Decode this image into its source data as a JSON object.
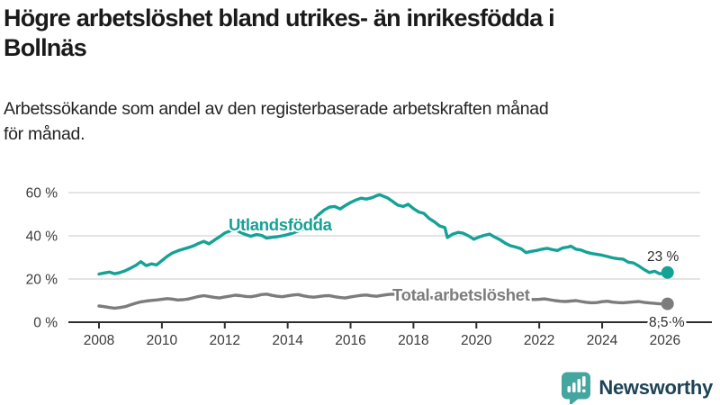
{
  "title": {
    "line1": "Högre arbetslöshet bland utrikes- än inrikesfödda i",
    "line2": "Bollnäs"
  },
  "subtitle": {
    "line1": "Arbetssökande som andel av den registerbaserade arbetskraften månad",
    "line2": "för månad."
  },
  "logo": {
    "text": "Newsworthy"
  },
  "colors": {
    "teal": "#15a296",
    "gray": "#7c7c7c",
    "grid": "#dcdcdc",
    "axis": "#2e2e2e",
    "tick_text": "#3a3a3a",
    "value_text": "#2e2e2e",
    "logo_navy": "#1c4356",
    "logo_teal": "#44a69e"
  },
  "chart_data": {
    "type": "line",
    "title": "Högre arbetslöshet bland utrikes- än inrikesfödda i Bollnäs",
    "subtitle": "Arbetssökande som andel av den registerbaserade arbetskraften månad för månad.",
    "xlabel": "",
    "ylabel": "",
    "y_unit": "%",
    "grid": "horizontal",
    "legend_position": "inline-labels",
    "x_axis": {
      "range": [
        2007.8,
        2026.5
      ],
      "ticks": [
        2008,
        2010,
        2012,
        2014,
        2016,
        2018,
        2020,
        2022,
        2024,
        2026
      ],
      "tick_labels": [
        "2008",
        "2010",
        "2012",
        "2014",
        "2016",
        "2018",
        "2020",
        "2022",
        "2024",
        "2026"
      ]
    },
    "y_axis": {
      "range": [
        0,
        62
      ],
      "ticks": [
        0,
        20,
        40,
        60
      ],
      "tick_labels": [
        "0 %",
        "20 %",
        "40 %",
        "60 %"
      ]
    },
    "series": [
      {
        "name": "Utlandsfödda",
        "end_label": "23 %",
        "end_value": 23,
        "points": [
          [
            2008.0,
            22.3
          ],
          [
            2008.17,
            22.8
          ],
          [
            2008.33,
            23.2
          ],
          [
            2008.5,
            22.4
          ],
          [
            2008.67,
            23.0
          ],
          [
            2008.83,
            23.8
          ],
          [
            2009.0,
            25.0
          ],
          [
            2009.17,
            26.3
          ],
          [
            2009.33,
            28.0
          ],
          [
            2009.5,
            26.2
          ],
          [
            2009.67,
            27.0
          ],
          [
            2009.83,
            26.5
          ],
          [
            2010.0,
            28.5
          ],
          [
            2010.17,
            30.5
          ],
          [
            2010.33,
            32.0
          ],
          [
            2010.5,
            33.0
          ],
          [
            2010.67,
            33.8
          ],
          [
            2010.83,
            34.5
          ],
          [
            2011.0,
            35.3
          ],
          [
            2011.17,
            36.5
          ],
          [
            2011.33,
            37.4
          ],
          [
            2011.5,
            36.3
          ],
          [
            2011.67,
            38.0
          ],
          [
            2011.83,
            39.5
          ],
          [
            2012.0,
            41.3
          ],
          [
            2012.17,
            42.3
          ],
          [
            2012.33,
            42.9
          ],
          [
            2012.5,
            41.6
          ],
          [
            2012.67,
            40.5
          ],
          [
            2012.83,
            39.8
          ],
          [
            2013.0,
            40.6
          ],
          [
            2013.17,
            40.2
          ],
          [
            2013.33,
            38.9
          ],
          [
            2013.5,
            39.3
          ],
          [
            2013.67,
            39.6
          ],
          [
            2013.83,
            40.0
          ],
          [
            2014.0,
            40.6
          ],
          [
            2014.17,
            41.3
          ],
          [
            2014.33,
            42.2
          ],
          [
            2014.5,
            43.0
          ],
          [
            2014.67,
            45.0
          ],
          [
            2014.83,
            47.5
          ],
          [
            2015.0,
            50.0
          ],
          [
            2015.17,
            52.0
          ],
          [
            2015.33,
            53.3
          ],
          [
            2015.5,
            53.6
          ],
          [
            2015.67,
            52.4
          ],
          [
            2015.83,
            54.0
          ],
          [
            2016.0,
            55.4
          ],
          [
            2016.17,
            56.6
          ],
          [
            2016.33,
            57.4
          ],
          [
            2016.5,
            57.0
          ],
          [
            2016.67,
            57.6
          ],
          [
            2016.83,
            58.6
          ],
          [
            2016.92,
            59.0
          ],
          [
            2017.0,
            58.6
          ],
          [
            2017.17,
            57.6
          ],
          [
            2017.33,
            56.0
          ],
          [
            2017.5,
            54.2
          ],
          [
            2017.67,
            53.6
          ],
          [
            2017.83,
            54.6
          ],
          [
            2018.0,
            52.6
          ],
          [
            2018.17,
            51.0
          ],
          [
            2018.33,
            50.4
          ],
          [
            2018.5,
            48.0
          ],
          [
            2018.67,
            46.4
          ],
          [
            2018.83,
            44.6
          ],
          [
            2019.0,
            43.8
          ],
          [
            2019.08,
            39.2
          ],
          [
            2019.25,
            40.8
          ],
          [
            2019.42,
            41.6
          ],
          [
            2019.58,
            41.2
          ],
          [
            2019.75,
            40.0
          ],
          [
            2019.92,
            38.4
          ],
          [
            2020.08,
            39.4
          ],
          [
            2020.25,
            40.2
          ],
          [
            2020.42,
            40.8
          ],
          [
            2020.58,
            39.4
          ],
          [
            2020.75,
            38.2
          ],
          [
            2020.92,
            36.6
          ],
          [
            2021.08,
            35.4
          ],
          [
            2021.25,
            34.8
          ],
          [
            2021.42,
            34.0
          ],
          [
            2021.58,
            32.2
          ],
          [
            2021.75,
            32.8
          ],
          [
            2021.92,
            33.2
          ],
          [
            2022.08,
            33.8
          ],
          [
            2022.25,
            34.2
          ],
          [
            2022.42,
            33.6
          ],
          [
            2022.58,
            33.2
          ],
          [
            2022.75,
            34.4
          ],
          [
            2022.92,
            34.8
          ],
          [
            2023.0,
            35.2
          ],
          [
            2023.17,
            33.8
          ],
          [
            2023.33,
            33.4
          ],
          [
            2023.5,
            32.4
          ],
          [
            2023.67,
            31.8
          ],
          [
            2023.83,
            31.4
          ],
          [
            2024.0,
            31.0
          ],
          [
            2024.17,
            30.4
          ],
          [
            2024.33,
            29.8
          ],
          [
            2024.5,
            29.4
          ],
          [
            2024.67,
            29.2
          ],
          [
            2024.83,
            27.8
          ],
          [
            2025.0,
            27.4
          ],
          [
            2025.17,
            26.0
          ],
          [
            2025.33,
            24.4
          ],
          [
            2025.5,
            23.0
          ],
          [
            2025.67,
            23.6
          ],
          [
            2025.83,
            22.4
          ],
          [
            2026.0,
            22.6
          ],
          [
            2026.08,
            23.0
          ]
        ]
      },
      {
        "name": "Total arbetslöshet",
        "end_label": "8,5 %",
        "end_value": 8.5,
        "points": [
          [
            2008.0,
            7.5
          ],
          [
            2008.17,
            7.2
          ],
          [
            2008.33,
            6.8
          ],
          [
            2008.5,
            6.5
          ],
          [
            2008.67,
            6.8
          ],
          [
            2008.83,
            7.2
          ],
          [
            2009.0,
            8.0
          ],
          [
            2009.17,
            8.8
          ],
          [
            2009.33,
            9.4
          ],
          [
            2009.5,
            9.8
          ],
          [
            2009.67,
            10.1
          ],
          [
            2009.83,
            10.3
          ],
          [
            2010.0,
            10.6
          ],
          [
            2010.17,
            10.9
          ],
          [
            2010.33,
            10.7
          ],
          [
            2010.5,
            10.3
          ],
          [
            2010.67,
            10.4
          ],
          [
            2010.83,
            10.7
          ],
          [
            2011.0,
            11.3
          ],
          [
            2011.17,
            11.9
          ],
          [
            2011.33,
            12.3
          ],
          [
            2011.5,
            11.9
          ],
          [
            2011.67,
            11.5
          ],
          [
            2011.83,
            11.2
          ],
          [
            2012.0,
            11.7
          ],
          [
            2012.17,
            12.1
          ],
          [
            2012.33,
            12.5
          ],
          [
            2012.5,
            12.3
          ],
          [
            2012.67,
            11.9
          ],
          [
            2012.83,
            11.8
          ],
          [
            2013.0,
            12.2
          ],
          [
            2013.17,
            12.8
          ],
          [
            2013.33,
            13.0
          ],
          [
            2013.5,
            12.4
          ],
          [
            2013.67,
            12.0
          ],
          [
            2013.83,
            11.8
          ],
          [
            2014.0,
            12.2
          ],
          [
            2014.17,
            12.6
          ],
          [
            2014.33,
            12.8
          ],
          [
            2014.5,
            12.2
          ],
          [
            2014.67,
            11.8
          ],
          [
            2014.83,
            11.6
          ],
          [
            2015.0,
            11.9
          ],
          [
            2015.17,
            12.2
          ],
          [
            2015.33,
            12.3
          ],
          [
            2015.5,
            11.8
          ],
          [
            2015.67,
            11.4
          ],
          [
            2015.83,
            11.2
          ],
          [
            2016.0,
            11.7
          ],
          [
            2016.17,
            12.1
          ],
          [
            2016.33,
            12.4
          ],
          [
            2016.5,
            12.6
          ],
          [
            2016.67,
            12.2
          ],
          [
            2016.83,
            12.0
          ],
          [
            2017.0,
            12.4
          ],
          [
            2017.17,
            12.8
          ],
          [
            2017.33,
            13.0
          ],
          [
            2017.5,
            12.7
          ],
          [
            2017.67,
            12.3
          ],
          [
            2017.83,
            12.4
          ],
          [
            2018.0,
            12.5
          ],
          [
            2018.17,
            12.2
          ],
          [
            2018.33,
            11.9
          ],
          [
            2018.5,
            11.5
          ],
          [
            2018.67,
            11.2
          ],
          [
            2018.83,
            11.1
          ],
          [
            2019.0,
            11.3
          ],
          [
            2019.17,
            11.6
          ],
          [
            2019.33,
            11.8
          ],
          [
            2019.5,
            11.3
          ],
          [
            2019.67,
            11.0
          ],
          [
            2019.83,
            10.8
          ],
          [
            2020.0,
            11.0
          ],
          [
            2020.17,
            11.5
          ],
          [
            2020.33,
            11.9
          ],
          [
            2020.5,
            12.1
          ],
          [
            2020.67,
            11.8
          ],
          [
            2020.83,
            11.5
          ],
          [
            2021.0,
            11.6
          ],
          [
            2021.17,
            11.8
          ],
          [
            2021.33,
            11.5
          ],
          [
            2021.5,
            11.1
          ],
          [
            2021.67,
            10.7
          ],
          [
            2021.83,
            10.5
          ],
          [
            2022.0,
            10.6
          ],
          [
            2022.17,
            10.8
          ],
          [
            2022.33,
            10.4
          ],
          [
            2022.5,
            10.0
          ],
          [
            2022.67,
            9.7
          ],
          [
            2022.83,
            9.6
          ],
          [
            2023.0,
            9.8
          ],
          [
            2023.17,
            10.0
          ],
          [
            2023.33,
            9.6
          ],
          [
            2023.5,
            9.2
          ],
          [
            2023.67,
            9.0
          ],
          [
            2023.83,
            9.1
          ],
          [
            2024.0,
            9.5
          ],
          [
            2024.17,
            9.7
          ],
          [
            2024.33,
            9.3
          ],
          [
            2024.5,
            9.1
          ],
          [
            2024.67,
            9.0
          ],
          [
            2024.83,
            9.2
          ],
          [
            2025.0,
            9.4
          ],
          [
            2025.17,
            9.6
          ],
          [
            2025.33,
            9.2
          ],
          [
            2025.5,
            8.9
          ],
          [
            2025.67,
            8.7
          ],
          [
            2025.83,
            8.5
          ],
          [
            2026.0,
            8.4
          ],
          [
            2026.08,
            8.5
          ]
        ]
      }
    ]
  }
}
